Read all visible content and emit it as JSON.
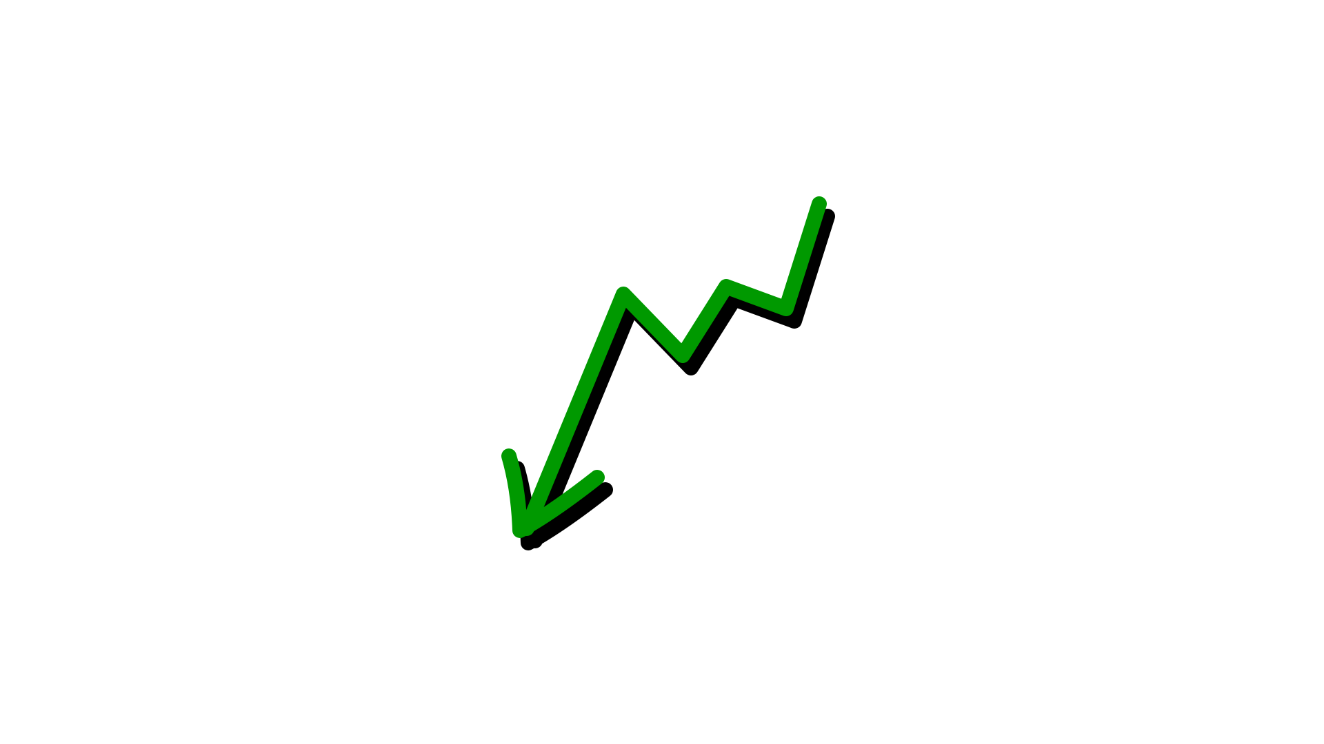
{
  "illustration": {
    "icon": "trending-down-arrow-icon",
    "colors": {
      "background": "#ffffff",
      "arrow": "#009900",
      "shadow": "#000000"
    }
  }
}
